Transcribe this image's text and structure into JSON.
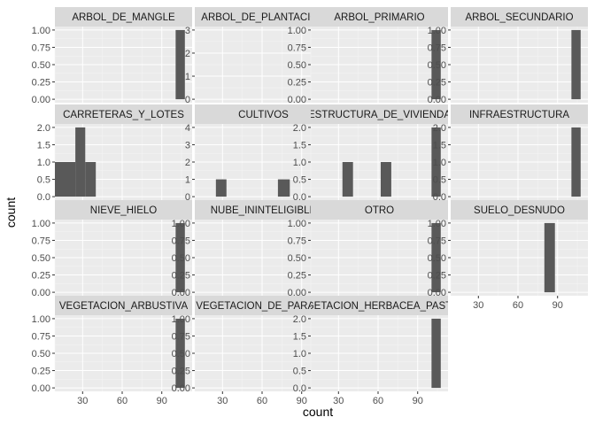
{
  "chart_data": {
    "type": "bar",
    "facet_layout": "4 x 4 grid, free y scales, shared x scale",
    "xlabel": "count",
    "ylabel": "count",
    "xlim": [
      9,
      113
    ],
    "x_ticks": [
      30,
      60,
      90
    ],
    "panel_background": "#ebebeb",
    "strip_background": "#d9d9d9",
    "bar_color": "#595959",
    "grid": true,
    "facets": [
      {
        "label": "ARBOL_DE_MANGLE",
        "ylim": [
          -0.05,
          1.05
        ],
        "y_ticks": [
          "0.00",
          "0.25",
          "0.50",
          "0.75",
          "1.00"
        ],
        "bins": [
          {
            "x0": 100.5,
            "x1": 107.5,
            "count": 1
          }
        ]
      },
      {
        "label": "ARBOL_DE_PLANTACION",
        "ylim": [
          -0.15,
          3.15
        ],
        "y_ticks": [
          "0",
          "1",
          "2",
          "3"
        ],
        "bins": [
          {
            "x0": 100.5,
            "x1": 107.5,
            "count": 3
          }
        ]
      },
      {
        "label": "ARBOL_PRIMARIO",
        "ylim": [
          -0.05,
          1.05
        ],
        "y_ticks": [
          "0.00",
          "0.25",
          "0.50",
          "0.75",
          "1.00"
        ],
        "bins": [
          {
            "x0": 100.5,
            "x1": 107.5,
            "count": 1
          }
        ]
      },
      {
        "label": "ARBOL_SECUNDARIO",
        "ylim": [
          -0.05,
          1.05
        ],
        "y_ticks": [
          "0.00",
          "0.25",
          "0.50",
          "0.75",
          "1.00"
        ],
        "bins": [
          {
            "x0": 100.5,
            "x1": 107.5,
            "count": 1
          }
        ]
      },
      {
        "label": "CARRETERAS_Y_LOTES",
        "ylim": [
          -0.1,
          2.1
        ],
        "y_ticks": [
          "0.0",
          "0.5",
          "1.0",
          "1.5",
          "2.0"
        ],
        "bins": [
          {
            "x0": 9,
            "x1": 24.5,
            "count": 1
          },
          {
            "x0": 24.5,
            "x1": 32,
            "count": 2
          },
          {
            "x0": 32,
            "x1": 40,
            "count": 1
          }
        ]
      },
      {
        "label": "CULTIVOS",
        "ylim": [
          -0.2,
          4.2
        ],
        "y_ticks": [
          "0",
          "1",
          "2",
          "3",
          "4"
        ],
        "bins": [
          {
            "x0": 25,
            "x1": 33,
            "count": 1
          },
          {
            "x0": 72,
            "x1": 81,
            "count": 1
          },
          {
            "x0": 100.5,
            "x1": 107.5,
            "count": 4
          }
        ]
      },
      {
        "label": "ESTRUCTURA_DE_VIVIENDA",
        "ylim": [
          -0.1,
          2.1
        ],
        "y_ticks": [
          "0.0",
          "0.5",
          "1.0",
          "1.5",
          "2.0"
        ],
        "bins": [
          {
            "x0": 33,
            "x1": 41,
            "count": 1
          },
          {
            "x0": 62,
            "x1": 70,
            "count": 1
          },
          {
            "x0": 100.5,
            "x1": 107.5,
            "count": 2
          }
        ]
      },
      {
        "label": "INFRAESTRUCTURA",
        "ylim": [
          -0.1,
          2.1
        ],
        "y_ticks": [
          "0.0",
          "0.5",
          "1.0",
          "1.5",
          "2.0"
        ],
        "bins": [
          {
            "x0": 100.5,
            "x1": 107.5,
            "count": 2
          }
        ]
      },
      {
        "label": "NIEVE_HIELO",
        "ylim": [
          -0.05,
          1.05
        ],
        "y_ticks": [
          "0.00",
          "0.25",
          "0.50",
          "0.75",
          "1.00"
        ],
        "bins": [
          {
            "x0": 100.5,
            "x1": 107.5,
            "count": 1
          }
        ]
      },
      {
        "label": "NUBE_ININTELIGIBLE",
        "ylim": [
          -0.05,
          1.05
        ],
        "y_ticks": [
          "0.00",
          "0.25",
          "0.50",
          "0.75",
          "1.00"
        ],
        "bins": [
          {
            "x0": 100.5,
            "x1": 107.5,
            "count": 1
          }
        ]
      },
      {
        "label": "OTRO",
        "ylim": [
          -0.05,
          1.05
        ],
        "y_ticks": [
          "0.00",
          "0.25",
          "0.50",
          "0.75",
          "1.00"
        ],
        "bins": [
          {
            "x0": 100.5,
            "x1": 107.5,
            "count": 1
          }
        ]
      },
      {
        "label": "SUELO_DESNUDO",
        "ylim": [
          -0.05,
          1.05
        ],
        "y_ticks": [
          "0.00",
          "0.25",
          "0.50",
          "0.75",
          "1.00"
        ],
        "bins": [
          {
            "x0": 80,
            "x1": 88,
            "count": 1
          }
        ]
      },
      {
        "label": "VEGETACION_ARBUSTIVA",
        "ylim": [
          -0.05,
          1.05
        ],
        "y_ticks": [
          "0.00",
          "0.25",
          "0.50",
          "0.75",
          "1.00"
        ],
        "bins": [
          {
            "x0": 100.5,
            "x1": 107.5,
            "count": 1
          }
        ]
      },
      {
        "label": "VEGETACION_DE_PARAMO",
        "ylim": [
          -0.05,
          1.05
        ],
        "y_ticks": [
          "0.00",
          "0.25",
          "0.50",
          "0.75",
          "1.00"
        ],
        "bins": [
          {
            "x0": 100.5,
            "x1": 107.5,
            "count": 1
          }
        ]
      },
      {
        "label": "VEGETACION_HERBACEA_PASTOS",
        "ylim": [
          -0.1,
          2.1
        ],
        "y_ticks": [
          "0.0",
          "0.5",
          "1.0",
          "1.5",
          "2.0"
        ],
        "bins": [
          {
            "x0": 100.5,
            "x1": 107.5,
            "count": 2
          }
        ]
      }
    ]
  }
}
